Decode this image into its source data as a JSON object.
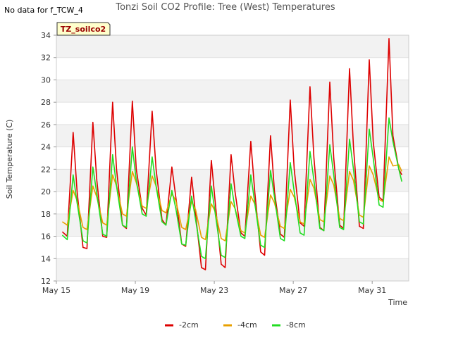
{
  "header": {
    "title": "Tonzi Soil CO2 Profile: Tree (West) Temperatures",
    "no_data": "No data for f_TCW_4",
    "badge": "TZ_soilco2"
  },
  "chart_data": {
    "type": "line",
    "title": "Tonzi Soil CO2 Profile: Tree (West) Temperatures",
    "xlabel": "Time",
    "ylabel": "Soil Temperature (C)",
    "xlim": [
      0,
      17.85
    ],
    "ylim": [
      12,
      34
    ],
    "x_ticks": [
      {
        "x": 0,
        "label": "May 15"
      },
      {
        "x": 4,
        "label": "May 19"
      },
      {
        "x": 8,
        "label": "May 23"
      },
      {
        "x": 12,
        "label": "May 27"
      },
      {
        "x": 16,
        "label": "May 31"
      }
    ],
    "y_ticks": [
      12,
      14,
      16,
      18,
      20,
      22,
      24,
      26,
      28,
      30,
      32,
      34
    ],
    "grid": "horizontal bands",
    "legend_position": "bottom-center",
    "series": [
      {
        "name": "-2cm",
        "color": "#dd0000",
        "x": [
          0.3,
          0.55,
          0.85,
          1.05,
          1.35,
          1.55,
          1.85,
          2.05,
          2.35,
          2.55,
          2.85,
          3.05,
          3.35,
          3.55,
          3.85,
          4.05,
          4.35,
          4.55,
          4.85,
          5.05,
          5.35,
          5.55,
          5.85,
          6.05,
          6.35,
          6.55,
          6.85,
          7.05,
          7.35,
          7.55,
          7.85,
          8.05,
          8.35,
          8.55,
          8.85,
          9.05,
          9.35,
          9.55,
          9.85,
          10.05,
          10.35,
          10.55,
          10.85,
          11.05,
          11.35,
          11.55,
          11.85,
          12.05,
          12.35,
          12.55,
          12.85,
          13.05,
          13.35,
          13.55,
          13.85,
          14.05,
          14.35,
          14.55,
          14.85,
          15.05,
          15.35,
          15.55,
          15.85,
          16.05,
          16.35,
          16.55,
          16.85,
          17.05,
          17.35,
          17.5
        ],
        "y": [
          16.4,
          16.0,
          25.3,
          20.0,
          15.0,
          14.9,
          26.2,
          21.0,
          16.0,
          15.9,
          28.0,
          22.0,
          17.0,
          16.7,
          28.1,
          22.0,
          18.5,
          17.9,
          27.2,
          22.0,
          17.5,
          17.0,
          22.2,
          19.5,
          15.3,
          15.1,
          21.3,
          18.0,
          13.2,
          13.0,
          22.8,
          19.0,
          13.5,
          13.2,
          23.3,
          20.0,
          16.3,
          16.0,
          24.5,
          20.0,
          14.6,
          14.3,
          25.0,
          20.0,
          16.2,
          15.9,
          28.2,
          22.0,
          17.2,
          16.9,
          29.4,
          23.0,
          16.8,
          16.5,
          29.8,
          23.0,
          17.0,
          16.7,
          31.0,
          24.0,
          16.9,
          16.7,
          31.8,
          24.5,
          19.5,
          19.2,
          33.7,
          25.0,
          22.0,
          21.5
        ]
      },
      {
        "name": "-4cm",
        "color": "#e8a000",
        "x": [
          0.3,
          0.55,
          0.85,
          1.05,
          1.35,
          1.55,
          1.85,
          2.05,
          2.35,
          2.55,
          2.85,
          3.05,
          3.35,
          3.55,
          3.85,
          4.05,
          4.35,
          4.55,
          4.85,
          5.05,
          5.35,
          5.55,
          5.85,
          6.05,
          6.35,
          6.55,
          6.85,
          7.05,
          7.35,
          7.55,
          7.85,
          8.05,
          8.35,
          8.55,
          8.85,
          9.05,
          9.35,
          9.55,
          9.85,
          10.05,
          10.35,
          10.55,
          10.85,
          11.05,
          11.35,
          11.55,
          11.85,
          12.05,
          12.35,
          12.55,
          12.85,
          13.05,
          13.35,
          13.55,
          13.85,
          14.05,
          14.35,
          14.55,
          14.85,
          15.05,
          15.35,
          15.55,
          15.85,
          16.05,
          16.35,
          16.55,
          16.85,
          17.05,
          17.35,
          17.5
        ],
        "y": [
          17.3,
          17.0,
          20.1,
          19.2,
          16.8,
          16.6,
          20.5,
          19.5,
          17.2,
          17.0,
          21.5,
          20.5,
          18.0,
          17.8,
          21.8,
          20.8,
          18.7,
          18.5,
          21.4,
          20.5,
          18.3,
          18.1,
          19.8,
          19.2,
          16.8,
          16.6,
          19.1,
          18.4,
          15.9,
          15.7,
          18.9,
          18.2,
          15.8,
          15.6,
          19.1,
          18.5,
          16.5,
          16.3,
          19.6,
          18.9,
          16.1,
          15.9,
          19.7,
          19.0,
          16.9,
          16.7,
          20.2,
          19.5,
          17.3,
          17.1,
          21.1,
          20.3,
          17.5,
          17.3,
          21.4,
          20.6,
          17.6,
          17.4,
          21.8,
          21.0,
          17.9,
          17.7,
          22.3,
          21.5,
          19.3,
          19.1,
          23.1,
          22.3,
          22.4,
          21.8
        ]
      },
      {
        "name": "-8cm",
        "color": "#22dd22",
        "x": [
          0.3,
          0.55,
          0.85,
          1.05,
          1.35,
          1.55,
          1.85,
          2.05,
          2.35,
          2.55,
          2.85,
          3.05,
          3.35,
          3.55,
          3.85,
          4.05,
          4.35,
          4.55,
          4.85,
          5.05,
          5.35,
          5.55,
          5.85,
          6.05,
          6.35,
          6.55,
          6.85,
          7.05,
          7.35,
          7.55,
          7.85,
          8.05,
          8.35,
          8.55,
          8.85,
          9.05,
          9.35,
          9.55,
          9.85,
          10.05,
          10.35,
          10.55,
          10.85,
          11.05,
          11.35,
          11.55,
          11.85,
          12.05,
          12.35,
          12.55,
          12.85,
          13.05,
          13.35,
          13.55,
          13.85,
          14.05,
          14.35,
          14.55,
          14.85,
          15.05,
          15.35,
          15.55,
          15.85,
          16.05,
          16.35,
          16.55,
          16.85,
          17.05,
          17.35,
          17.5
        ],
        "y": [
          16.1,
          15.7,
          21.5,
          19.0,
          15.6,
          15.4,
          22.2,
          19.8,
          16.2,
          16.0,
          23.3,
          20.5,
          17.0,
          16.8,
          24.0,
          21.0,
          18.0,
          17.8,
          23.1,
          20.5,
          17.3,
          17.0,
          20.1,
          18.5,
          15.3,
          15.2,
          19.6,
          17.5,
          14.2,
          14.0,
          20.5,
          18.0,
          14.3,
          14.1,
          20.7,
          18.5,
          16.0,
          15.8,
          21.5,
          19.0,
          15.2,
          15.0,
          21.9,
          19.5,
          15.8,
          15.6,
          22.6,
          20.0,
          16.3,
          16.1,
          23.6,
          21.0,
          16.7,
          16.5,
          24.2,
          21.5,
          16.8,
          16.6,
          24.7,
          22.0,
          17.3,
          17.1,
          25.6,
          23.0,
          18.8,
          18.6,
          26.6,
          24.5,
          22.0,
          20.9
        ]
      }
    ]
  }
}
